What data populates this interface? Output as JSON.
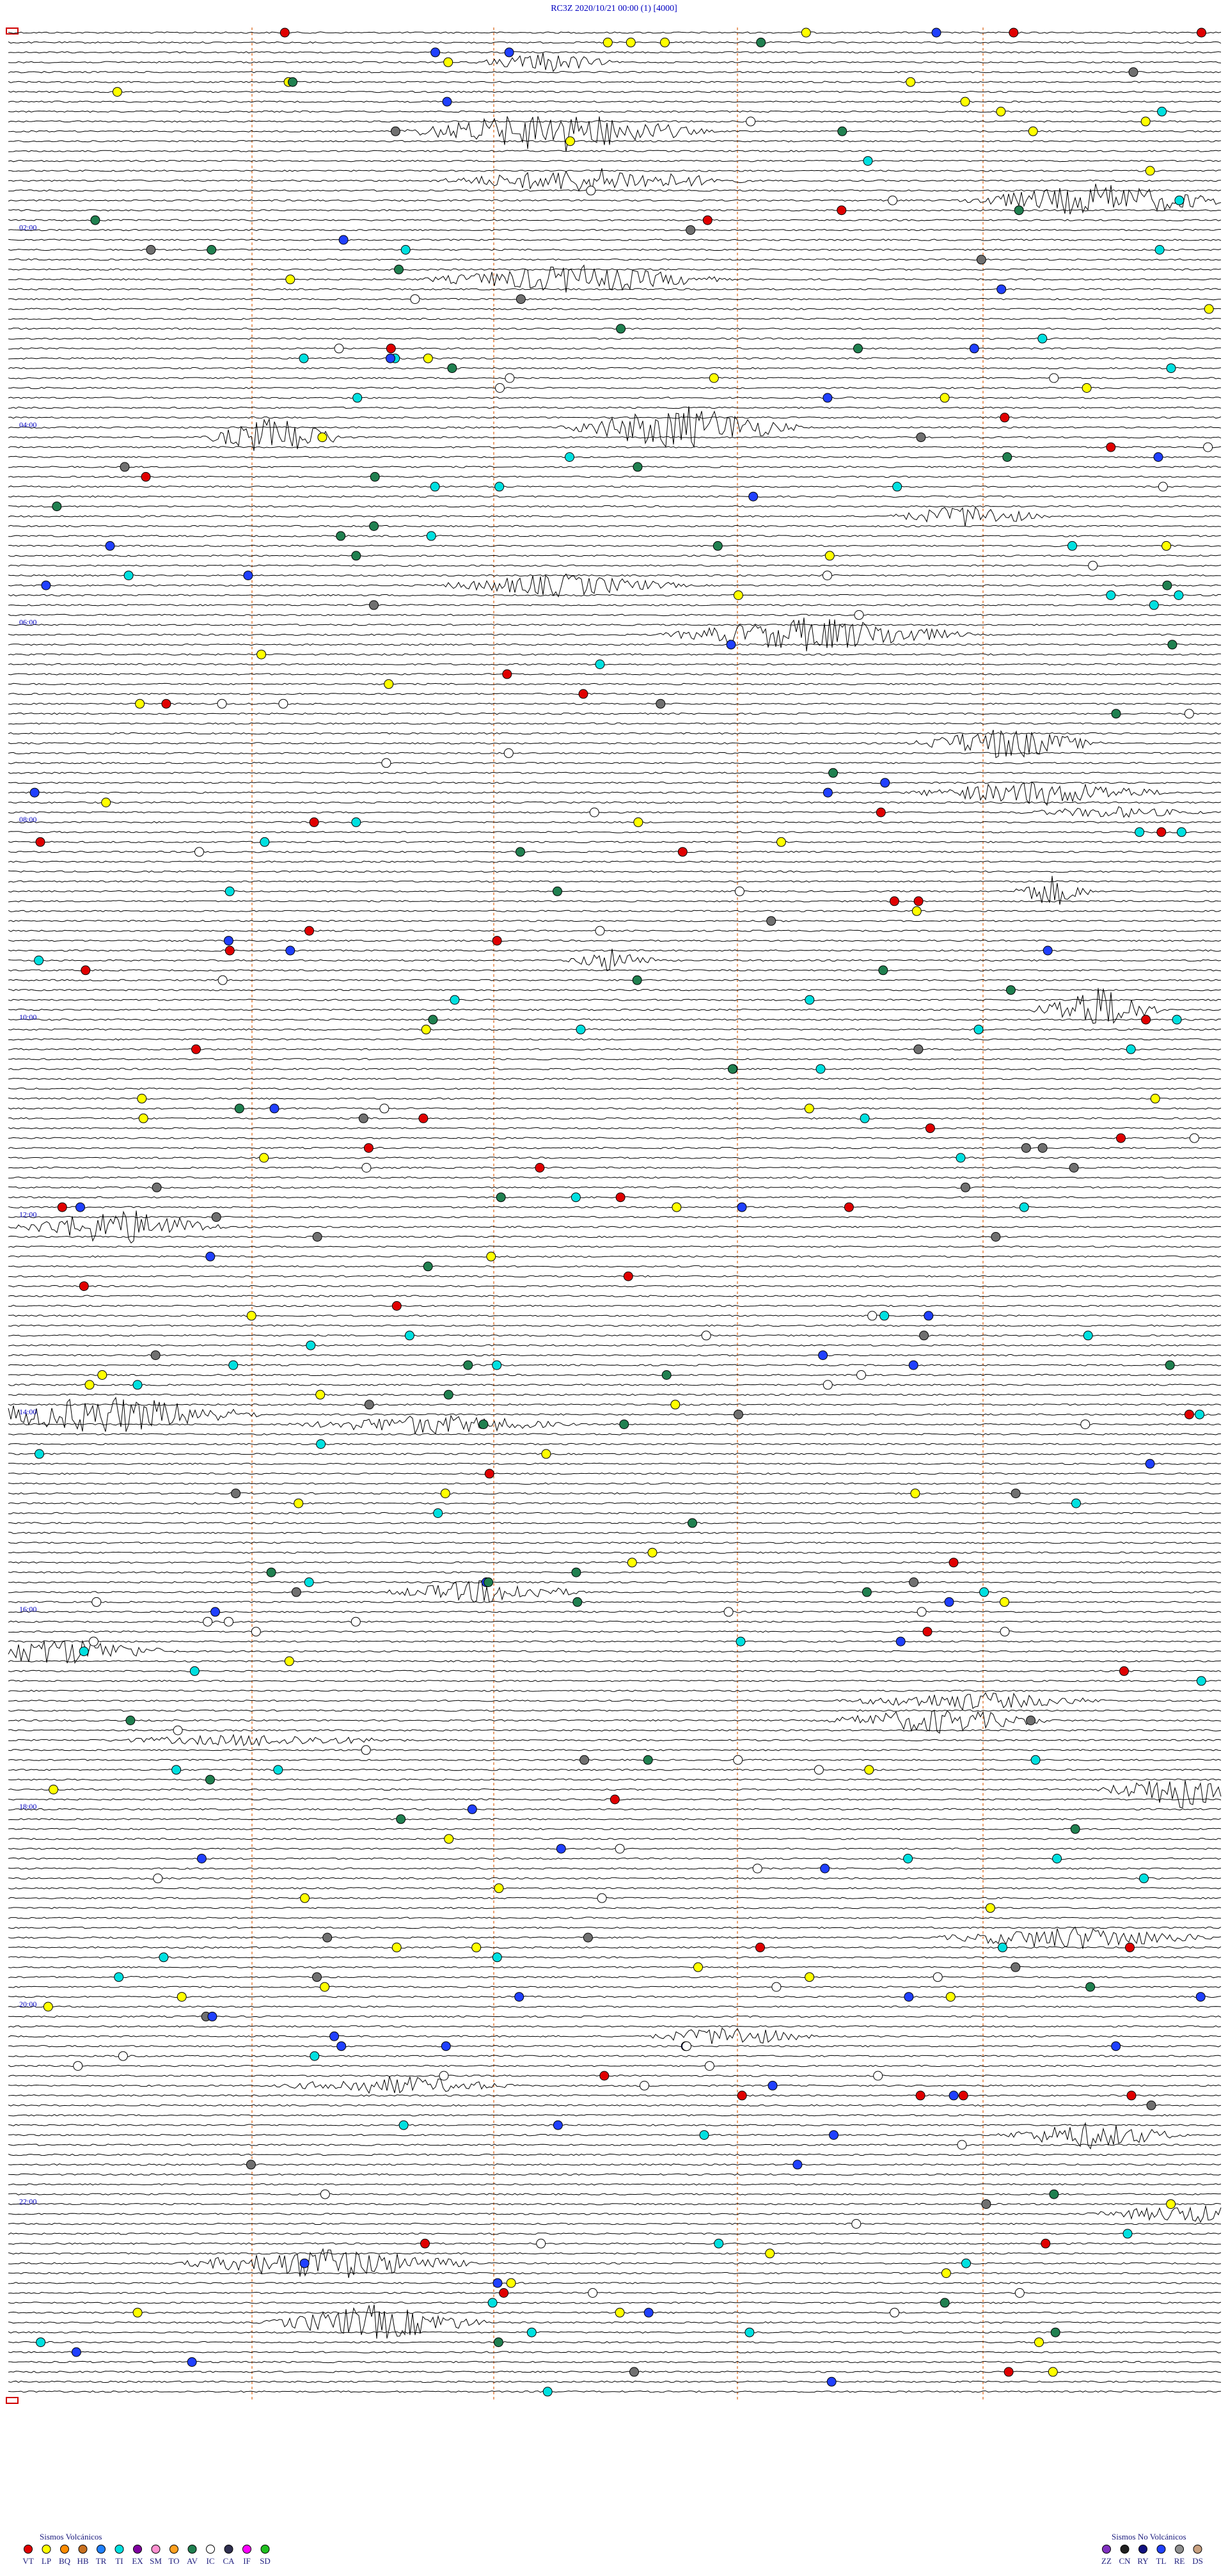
{
  "header": {
    "title": "RC3Z     2020/10/21 00:00     (1)     [4000]"
  },
  "time_labels": [
    "02:00",
    "04:00",
    "06:00",
    "08:00",
    "10:00",
    "12:00",
    "14:00",
    "16:00",
    "18:00",
    "20:00",
    "22:00"
  ],
  "legend": {
    "volcanic": {
      "title": "Sismos Volcánicos",
      "items": [
        {
          "code": "VT",
          "color": "#e00000"
        },
        {
          "code": "LP",
          "color": "#ffff00"
        },
        {
          "code": "BQ",
          "color": "#ff8c00"
        },
        {
          "code": "HB",
          "color": "#c87020"
        },
        {
          "code": "TR",
          "color": "#2080ff"
        },
        {
          "code": "TI",
          "color": "#00e0e0"
        },
        {
          "code": "EX",
          "color": "#8000a0"
        },
        {
          "code": "SM",
          "color": "#ff90d0"
        },
        {
          "code": "TO",
          "color": "#ffa020"
        },
        {
          "code": "AV",
          "color": "#208050"
        },
        {
          "code": "IC",
          "color": "#ffffff"
        },
        {
          "code": "CA",
          "color": "#303050"
        },
        {
          "code": "IF",
          "color": "#ff00ff"
        },
        {
          "code": "SD",
          "color": "#20c020"
        }
      ]
    },
    "non_volcanic": {
      "title": "Sismos No Volcánicos",
      "items": [
        {
          "code": "ZZ",
          "color": "#8030c0"
        },
        {
          "code": "CN",
          "color": "#202020"
        },
        {
          "code": "RY",
          "color": "#101080"
        },
        {
          "code": "TL",
          "color": "#2040ff"
        },
        {
          "code": "RE",
          "color": "#909090"
        },
        {
          "code": "DS",
          "color": "#c8a080"
        }
      ]
    }
  }
}
